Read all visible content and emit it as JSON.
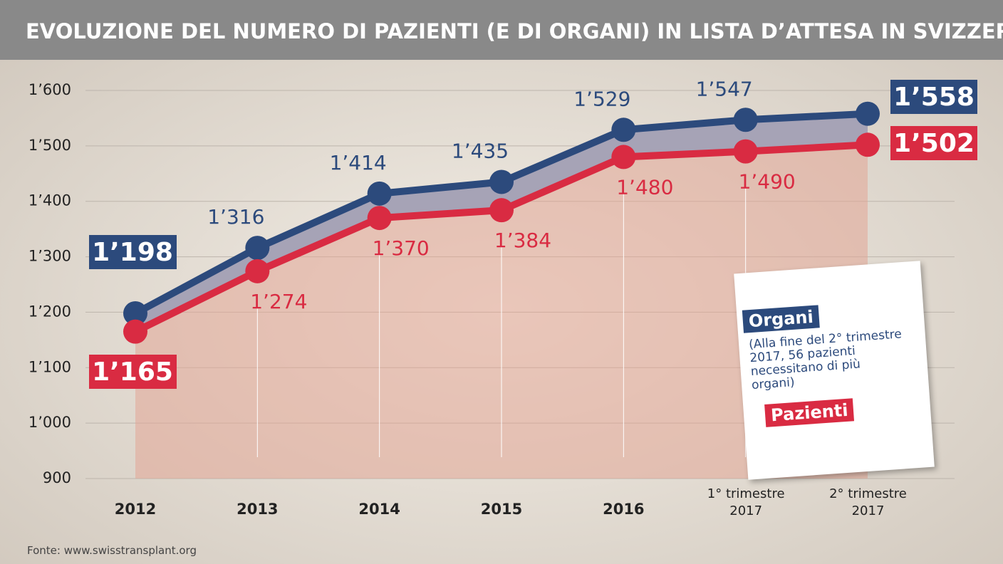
{
  "chart_data": {
    "type": "line",
    "title": "EVOLUZIONE DEL NUMERO DI PAZIENTI (E DI ORGANI) IN LISTA D’ATTESA IN SVIZZERA",
    "categories": [
      "2012",
      "2013",
      "2014",
      "2015",
      "2016",
      "1° trimestre 2017",
      "2° trimestre 2017"
    ],
    "series": [
      {
        "name": "Organi",
        "color": "#2c4a7c",
        "values": [
          1198,
          1316,
          1414,
          1435,
          1529,
          1547,
          1558
        ],
        "value_labels": [
          "1’198",
          "1’316",
          "1’414",
          "1’435",
          "1’529",
          "1’547",
          "1’558"
        ]
      },
      {
        "name": "Pazienti",
        "color": "#d92b42",
        "values": [
          1165,
          1274,
          1370,
          1384,
          1480,
          1490,
          1502
        ],
        "value_labels": [
          "1’165",
          "1’274",
          "1’370",
          "1’384",
          "1’480",
          "1’490",
          "1’502"
        ]
      }
    ],
    "ylim": [
      900,
      1600
    ],
    "yticks": [
      {
        "value": 900,
        "label": "900"
      },
      {
        "value": 1000,
        "label": "1’000"
      },
      {
        "value": 1100,
        "label": "1’100"
      },
      {
        "value": 1200,
        "label": "1’200"
      },
      {
        "value": 1300,
        "label": "1’300"
      },
      {
        "value": 1400,
        "label": "1’400"
      },
      {
        "value": 1500,
        "label": "1’500"
      },
      {
        "value": 1600,
        "label": "1’600"
      }
    ],
    "grid": true,
    "annotation": "(Alla fine del 2° trimestre 2017, 56 pazienti necessitano di più organi)",
    "source": "Fonte: www.swisstransplant.org"
  }
}
